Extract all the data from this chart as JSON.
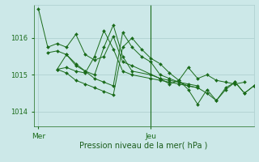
{
  "bg_color": "#cce8e8",
  "grid_color": "#aacccc",
  "line_color": "#1a6b1a",
  "marker_color": "#1a6b1a",
  "xlabel": "Pression niveau de la mer( hPa )",
  "xlabel_color": "#1a5c1a",
  "tick_color": "#1a6b1a",
  "yticks": [
    1014,
    1015,
    1016
  ],
  "ylim": [
    1013.6,
    1016.9
  ],
  "xlim": [
    0,
    47
  ],
  "xtick_positions": [
    1,
    25
  ],
  "xtick_labels": [
    "Mer",
    "Jeu"
  ],
  "vline_x": 25,
  "series_x": [
    [
      1,
      3,
      5,
      7,
      9,
      11,
      13,
      15,
      17,
      19,
      21,
      27,
      29,
      31,
      33,
      35,
      37,
      39,
      41,
      43,
      45
    ],
    [
      3,
      5,
      7,
      9,
      11,
      13,
      15,
      17,
      19,
      21,
      23,
      25,
      27,
      29,
      31,
      33,
      35
    ],
    [
      5,
      7,
      9,
      11,
      13,
      15,
      17,
      19,
      21,
      25,
      27,
      29,
      31,
      33,
      35
    ],
    [
      5,
      7,
      9,
      11,
      13,
      15,
      17,
      19,
      21,
      25,
      27,
      29,
      31,
      33,
      35,
      37,
      39,
      41,
      43,
      45,
      47
    ],
    [
      5,
      7,
      9,
      11,
      13,
      15,
      17,
      19,
      21,
      23,
      25,
      27,
      29,
      31,
      33,
      35,
      37,
      39,
      41,
      43,
      45,
      47
    ]
  ],
  "series_y": [
    [
      1016.8,
      1015.75,
      1015.85,
      1015.75,
      1016.1,
      1015.55,
      1015.4,
      1015.5,
      1016.05,
      1015.35,
      1015.25,
      1014.9,
      1014.75,
      1014.85,
      1015.2,
      1014.9,
      1015.0,
      1014.85,
      1014.8,
      1014.75,
      1014.8
    ],
    [
      1015.6,
      1015.65,
      1015.55,
      1015.3,
      1015.1,
      1014.9,
      1014.8,
      1014.7,
      1016.15,
      1015.75,
      1015.5,
      1015.35,
      1015.0,
      1014.9,
      1014.8,
      1014.7,
      1014.65
    ],
    [
      1015.15,
      1015.55,
      1015.25,
      1015.1,
      1015.0,
      1015.75,
      1016.35,
      1015.5,
      1015.1,
      1015.0,
      1014.9,
      1014.85,
      1014.8,
      1014.75,
      1014.7
    ],
    [
      1015.15,
      1015.2,
      1015.1,
      1015.05,
      1015.5,
      1016.2,
      1015.7,
      1015.1,
      1015.0,
      1014.9,
      1014.85,
      1014.8,
      1014.75,
      1014.7,
      1014.65,
      1014.5,
      1014.3,
      1014.6,
      1014.8,
      1014.5,
      1014.7
    ],
    [
      1015.15,
      1015.05,
      1014.85,
      1014.75,
      1014.65,
      1014.55,
      1014.45,
      1015.75,
      1016.0,
      1015.7,
      1015.45,
      1015.3,
      1015.05,
      1014.85,
      1014.6,
      1014.2,
      1014.6,
      1014.3,
      1014.65,
      1014.8,
      1014.5,
      1014.7
    ]
  ]
}
